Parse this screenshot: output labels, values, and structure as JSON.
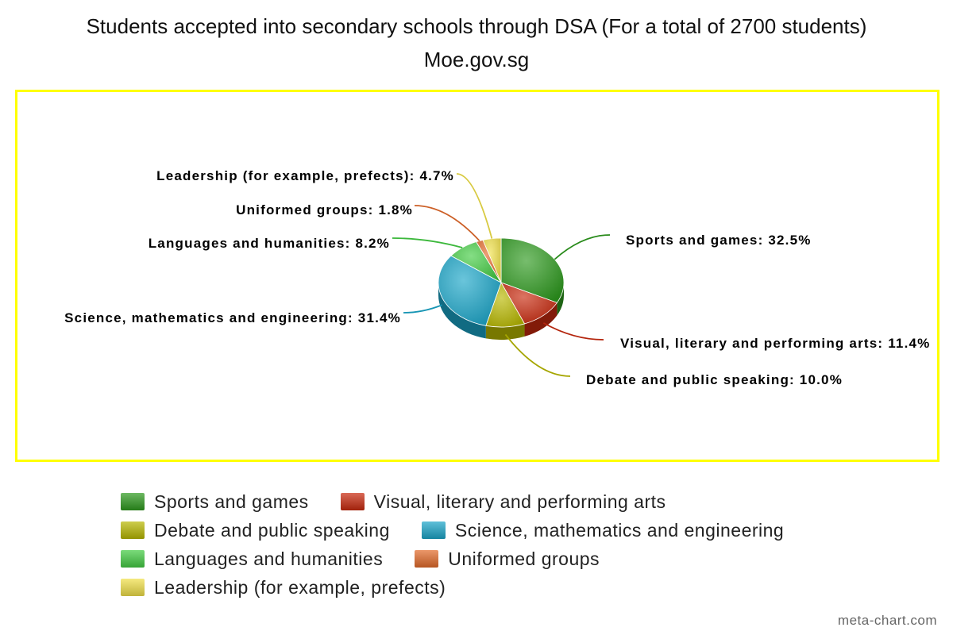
{
  "chart_data": {
    "type": "pie",
    "title": "Students accepted into secondary schools through DSA (For a total of 2700 students)",
    "subtitle": "Moe.gov.sg",
    "slices": [
      {
        "name": "Sports and games",
        "value": 32.5,
        "label": "Sports and games: 32.5%",
        "color": "#2e9a1e"
      },
      {
        "name": "Visual, literary and performing arts",
        "value": 11.4,
        "label": "Visual, literary and performing arts: 11.4%",
        "color": "#c8290e"
      },
      {
        "name": "Debate and public speaking",
        "value": 10.0,
        "label": "Debate and public speaking: 10.0%",
        "color": "#b8b800"
      },
      {
        "name": "Science, mathematics and engineering",
        "value": 31.4,
        "label": "Science, mathematics and engineering: 31.4%",
        "color": "#1aa5c8"
      },
      {
        "name": "Languages and humanities",
        "value": 8.2,
        "label": "Languages and humanities: 8.2%",
        "color": "#43cc43"
      },
      {
        "name": "Uniformed groups",
        "value": 1.8,
        "label": "Uniformed groups: 1.8%",
        "color": "#e36a2a"
      },
      {
        "name": "Leadership (for example, prefects)",
        "value": 4.7,
        "label": "Leadership (for example, prefects): 4.7%",
        "color": "#f0e048"
      }
    ],
    "legend": {
      "placement": "bottom",
      "rows": [
        [
          "Sports and games",
          "Visual, literary and performing arts"
        ],
        [
          "Debate and public speaking",
          "Science, mathematics and engineering"
        ],
        [
          "Languages and humanities",
          "Uniformed groups"
        ],
        [
          "Leadership (for example, prefects)"
        ]
      ]
    }
  },
  "watermark": "meta-chart.com"
}
